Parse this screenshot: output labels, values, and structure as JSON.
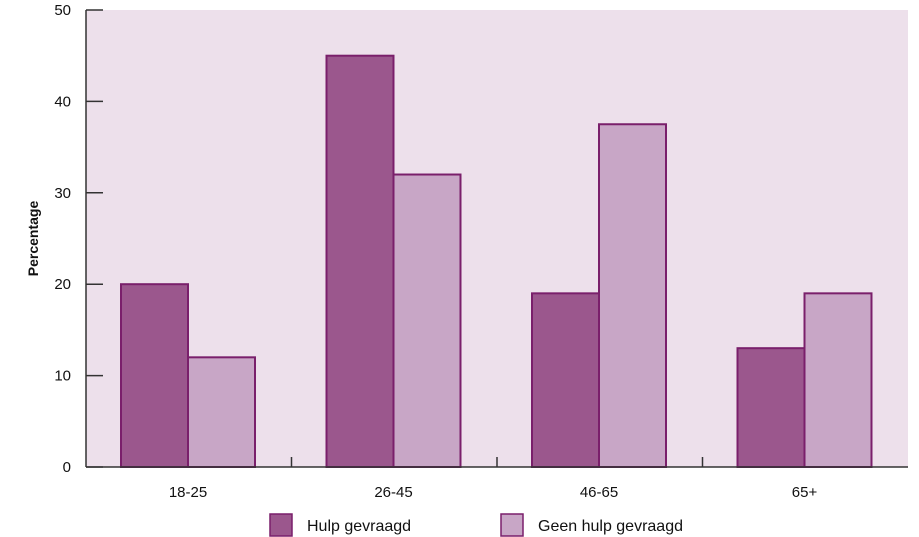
{
  "chart_data": {
    "type": "bar",
    "title": "",
    "xlabel": "",
    "ylabel": "Percentage",
    "ylim": [
      0,
      50
    ],
    "yticks": [
      0,
      10,
      20,
      30,
      40,
      50
    ],
    "categories": [
      "18-25",
      "26-45",
      "46-65",
      "65+"
    ],
    "series": [
      {
        "name": "Hulp gevraagd",
        "values": [
          20,
          45,
          19,
          13
        ],
        "color": "#9b578d"
      },
      {
        "name": "Geen hulp gevraagd",
        "values": [
          12,
          32,
          37.5,
          19
        ],
        "color": "#c8a6c6"
      }
    ],
    "legend": "bottom",
    "grid": false,
    "plot_background": "#ede0eb",
    "bar_edge_color": "#7a1f6b"
  }
}
